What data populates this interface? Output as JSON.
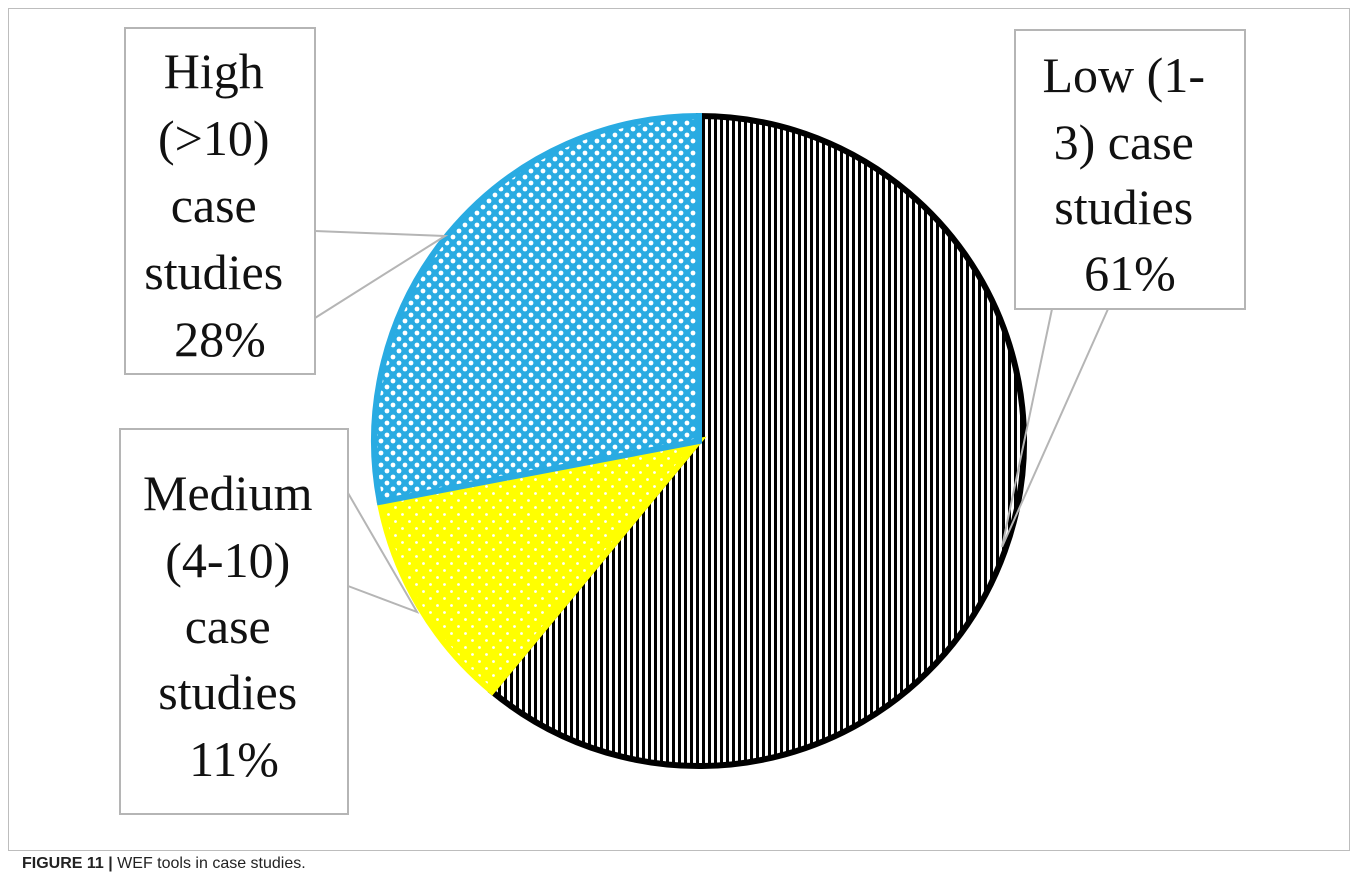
{
  "caption": {
    "label": "FIGURE 11 |",
    "text": " WEF tools in case studies."
  },
  "chart_data": {
    "type": "pie",
    "start_angle_deg": 0,
    "direction": "clockwise",
    "slices": [
      {
        "key": "low",
        "label_lines": [
          "Low  (1-",
          "3) case",
          "studies",
          "61%"
        ],
        "value": 61,
        "pattern": "vertical-stripes",
        "fill": "#ffffff",
        "pattern_color": "#000000",
        "stroke": "#000000"
      },
      {
        "key": "medium",
        "label_lines": [
          "Medium",
          "(4-10)",
          "case",
          "studies",
          "11%"
        ],
        "value": 11,
        "pattern": "dots",
        "fill": "#ffff00",
        "pattern_color": "#ffffff",
        "stroke": "#ffff00"
      },
      {
        "key": "high",
        "label_lines": [
          "High",
          "(>10)",
          "case",
          "studies",
          "28%"
        ],
        "value": 28,
        "pattern": "checker-circles",
        "fill": "#ffffff",
        "pattern_color": "#29abe2",
        "stroke": "#29abe2"
      }
    ],
    "legend": "none",
    "labels": "callouts"
  }
}
